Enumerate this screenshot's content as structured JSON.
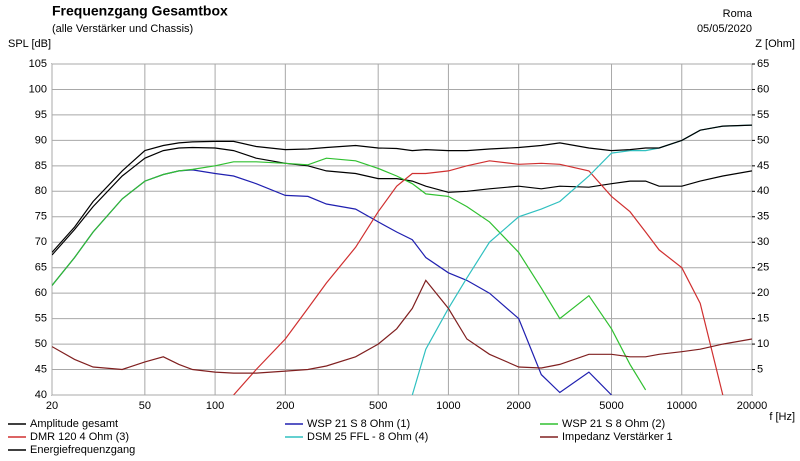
{
  "chart_data": {
    "type": "line",
    "title": "Frequenzgang Gesamtbox",
    "subtitle": "(alle Verstärker und Chassis)",
    "annotations": [
      "Roma",
      "05/05/2020"
    ],
    "y_label": "SPL [dB]",
    "y2_label": "Z [Ohm]",
    "x_label": "f [Hz]",
    "x_log": true,
    "grid": true,
    "x": [
      20,
      25,
      30,
      40,
      50,
      60,
      70,
      80,
      100,
      120,
      150,
      200,
      250,
      300,
      400,
      500,
      600,
      700,
      800,
      1000,
      1200,
      1500,
      2000,
      2500,
      3000,
      4000,
      5000,
      6000,
      7000,
      8000,
      10000,
      12000,
      15000,
      20000
    ],
    "xlim": [
      20,
      20000
    ],
    "xticks": [
      20,
      50,
      100,
      200,
      500,
      1000,
      2000,
      5000,
      10000,
      20000
    ],
    "ylim": [
      40,
      105
    ],
    "yticks": [
      40,
      45,
      50,
      55,
      60,
      65,
      70,
      75,
      80,
      85,
      90,
      95,
      100,
      105
    ],
    "y2lim": [
      0,
      65
    ],
    "y2ticks": [
      5,
      10,
      15,
      20,
      25,
      30,
      35,
      40,
      45,
      50,
      55,
      60,
      65
    ],
    "series": [
      {
        "name": "Amplitude gesamt",
        "color": "#000000",
        "values": [
          67.5,
          72.5,
          77,
          83,
          86.5,
          88,
          88.5,
          88.6,
          88.5,
          88,
          86.5,
          85.5,
          85,
          84,
          83.5,
          82.5,
          82.5,
          82,
          81,
          79.8,
          80,
          80.5,
          81,
          80.5,
          81,
          80.8,
          81.5,
          82,
          82,
          81,
          81,
          82,
          83,
          84
        ]
      },
      {
        "name": "WSP 21 S 8 Ohm (1)",
        "color": "#2020b0",
        "values": [
          61.5,
          67,
          72,
          78.5,
          82,
          83.3,
          84,
          84.2,
          83.5,
          83,
          81.5,
          79.2,
          79,
          77.5,
          76.5,
          74,
          72,
          70.5,
          67,
          64,
          62.5,
          60,
          55,
          44,
          40.5,
          44.5,
          40,
          null,
          null,
          null,
          null,
          null,
          null,
          null
        ]
      },
      {
        "name": "WSP 21 S 8 Ohm (2)",
        "color": "#30c030",
        "values": [
          61.5,
          67,
          72,
          78.5,
          82,
          83.3,
          84,
          84.3,
          85,
          85.8,
          85.8,
          85.5,
          85.2,
          86.5,
          86,
          84.5,
          83,
          81.5,
          79.5,
          79,
          77,
          74,
          68,
          61,
          55,
          59.5,
          53,
          46,
          41,
          null,
          null,
          null,
          null,
          null
        ]
      },
      {
        "name": "DMR 120 4 Ohm (3)",
        "color": "#d03030",
        "values": [
          null,
          null,
          null,
          null,
          null,
          null,
          null,
          null,
          null,
          40,
          45,
          51,
          57,
          62,
          69,
          76,
          81,
          83.5,
          83.5,
          84,
          85,
          86,
          85.3,
          85.5,
          85.3,
          84,
          79,
          76,
          72,
          68.5,
          65,
          58,
          40,
          null
        ]
      },
      {
        "name": "DSM 25 FFL - 8 Ohm (4)",
        "color": "#30c0c0",
        "values": [
          null,
          null,
          null,
          null,
          null,
          null,
          null,
          null,
          null,
          null,
          null,
          null,
          null,
          null,
          null,
          null,
          null,
          40,
          49,
          57,
          63,
          70,
          75,
          76.5,
          78,
          83,
          87.5,
          88,
          88,
          88.5,
          90,
          92,
          92.8,
          93
        ]
      },
      {
        "name": "Impedanz Verstärker 1",
        "color": "#802020",
        "axis": "y2",
        "values": [
          9.5,
          7,
          5.5,
          5,
          6.5,
          7.5,
          6,
          5,
          4.5,
          4.3,
          4.3,
          4.7,
          5,
          5.7,
          7.5,
          10,
          13,
          17,
          22.5,
          17,
          11,
          8,
          5.5,
          5.3,
          6,
          8,
          8,
          7.5,
          7.5,
          8,
          8.5,
          9,
          10,
          11
        ]
      },
      {
        "name": "Energiefrequenzgang",
        "color": "#000000",
        "values": [
          68,
          73,
          78,
          84,
          88,
          89,
          89.5,
          89.7,
          89.8,
          89.8,
          88.8,
          88.2,
          88.3,
          88.6,
          89,
          88.5,
          88.4,
          88,
          88.2,
          88,
          88,
          88.3,
          88.6,
          89,
          89.5,
          88.5,
          88,
          88.2,
          88.5,
          88.5,
          90,
          92,
          92.8,
          93
        ]
      }
    ]
  }
}
